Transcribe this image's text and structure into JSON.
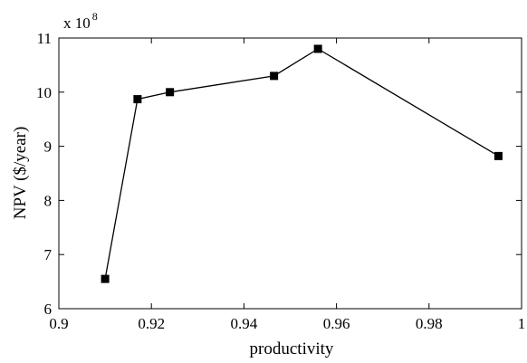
{
  "chart_data": {
    "type": "line",
    "xlabel": "productivity",
    "ylabel": "NPV ($/year)",
    "y_multiplier_prefix": "x 10",
    "y_multiplier_exponent": "8",
    "xlim": [
      0.9,
      1.0
    ],
    "ylim": [
      6,
      11
    ],
    "x_ticks": [
      0.9,
      0.92,
      0.94,
      0.96,
      0.98,
      1.0
    ],
    "x_tick_labels": [
      "0.9",
      "0.92",
      "0.94",
      "0.96",
      "0.98",
      "1"
    ],
    "y_ticks": [
      6,
      7,
      8,
      9,
      10,
      11
    ],
    "y_tick_labels": [
      "6",
      "7",
      "8",
      "9",
      "10",
      "11"
    ],
    "grid": false,
    "series": [
      {
        "marker": "square",
        "color": "#000000",
        "x": [
          0.91,
          0.917,
          0.924,
          0.9465,
          0.956,
          0.995
        ],
        "y": [
          6.55,
          9.87,
          10.0,
          10.3,
          10.8,
          8.82
        ]
      }
    ]
  }
}
